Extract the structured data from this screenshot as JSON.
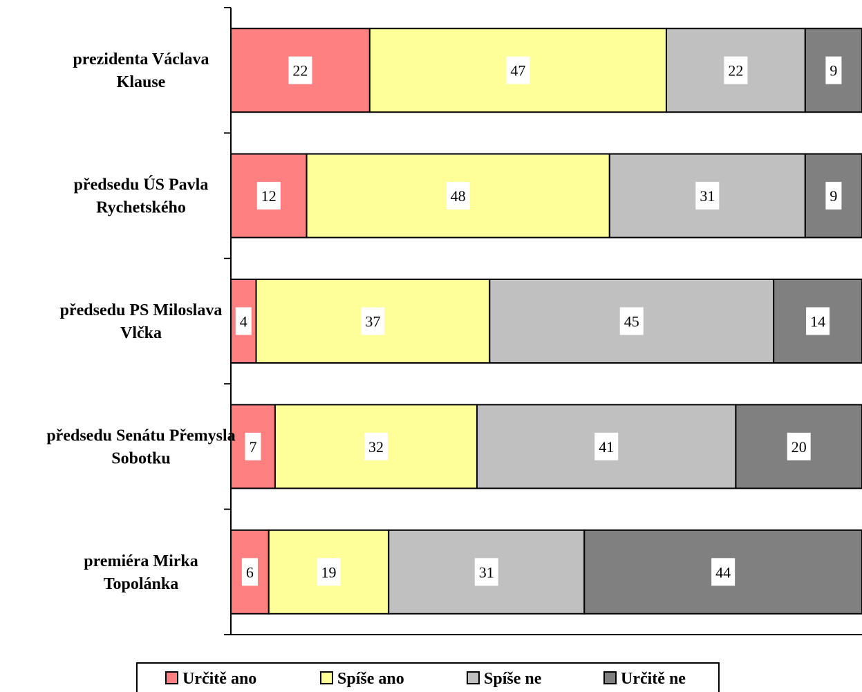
{
  "chart_data": {
    "type": "bar",
    "orientation": "horizontal",
    "stacked": true,
    "categories": [
      "prezidenta Václava Klause",
      "předsedu ÚS Pavla Rychetského",
      "předsedu PS Miloslava Vlčka",
      "předsedu Senátu Přemysla Sobotku",
      "premiéra Mirka Topolánka"
    ],
    "category_lines": [
      [
        "prezidenta Václava",
        "Klause"
      ],
      [
        "předsedu ÚS Pavla",
        "Rychetského"
      ],
      [
        "předsedu PS Miloslava",
        "Vlčka"
      ],
      [
        "předsedu Senátu Přemysla",
        "Sobotku"
      ],
      [
        "premiéra Mirka",
        "Topolánka"
      ]
    ],
    "series": [
      {
        "name": "Určitě ano",
        "color": "#ff8080",
        "values": [
          22,
          12,
          4,
          7,
          6
        ]
      },
      {
        "name": "Spíše ano",
        "color": "#ffff99",
        "values": [
          47,
          48,
          37,
          32,
          19
        ]
      },
      {
        "name": "Spíše ne",
        "color": "#c0c0c0",
        "values": [
          22,
          31,
          45,
          41,
          31
        ]
      },
      {
        "name": "Určitě ne",
        "color": "#808080",
        "values": [
          9,
          9,
          14,
          20,
          44
        ]
      }
    ],
    "xlim": [
      0,
      100
    ],
    "grid": false,
    "legend_position": "bottom"
  }
}
